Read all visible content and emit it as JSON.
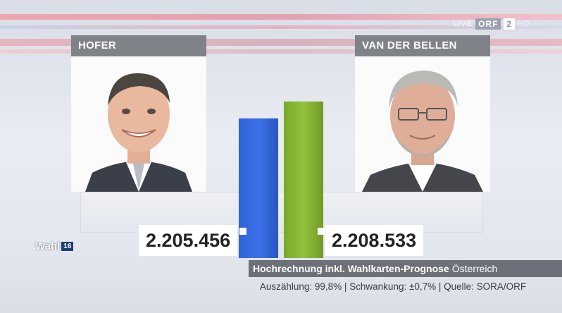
{
  "channel": {
    "live_label": "LIVE",
    "orf_label": "ORF",
    "channel_number": "2",
    "hd_label": "HD"
  },
  "candidates": [
    {
      "name": "HOFER",
      "votes": "2.205.456",
      "color": "#3366dd"
    },
    {
      "name": "VAN DER BELLEN",
      "votes": "2.208.533",
      "color": "#8ab834"
    }
  ],
  "caption": {
    "title": "Hochrechnung inkl. Wahlkarten-Prognose",
    "region": "Österreich"
  },
  "source_line": "Auszählung: 99,8% | Schwankung: ±0,7% | Quelle: SORA/ORF",
  "program_logo": {
    "word": "Wahl",
    "year": "16"
  },
  "chart_data": {
    "type": "bar",
    "categories": [
      "HOFER",
      "VAN DER BELLEN"
    ],
    "values": [
      2205456,
      2208533
    ]
  }
}
